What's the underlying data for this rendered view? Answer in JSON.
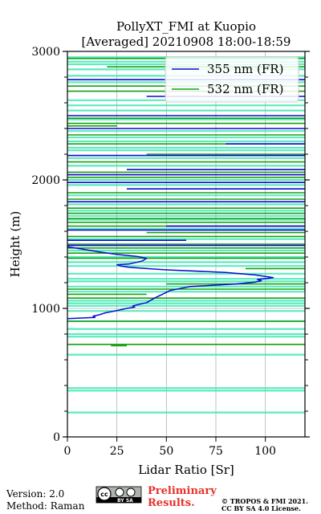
{
  "chart_data": {
    "type": "line",
    "title": "PollyXT_FMI at Kuopio",
    "subtitle": "[Averaged] 20210908 18:00-18:59",
    "xlabel": "Lidar Ratio [Sr]",
    "ylabel": "Height (m)",
    "xlim": [
      0,
      120
    ],
    "ylim": [
      0,
      3000
    ],
    "x_ticks": [
      "0",
      "25",
      "50",
      "75",
      "100"
    ],
    "y_ticks": [
      "0",
      "1000",
      "2000",
      "3000"
    ],
    "grid": true,
    "legend_position": "top-right",
    "colors": {
      "c355": "#0a0ad2",
      "c532": "#14a014",
      "band": "#3de8b4"
    },
    "series": [
      {
        "name": "355 nm (FR)",
        "color": "#0a0ad2",
        "x": [
          0,
          14,
          13,
          16,
          19,
          24,
          27,
          30,
          34,
          33,
          40,
          44,
          48,
          52,
          62,
          85,
          95,
          98,
          96,
          102,
          104,
          95,
          80,
          50,
          40,
          31,
          27,
          25,
          31,
          34,
          38,
          40,
          35,
          25,
          16,
          12,
          8,
          4,
          0
        ],
        "y": [
          920,
          930,
          940,
          950,
          965,
          980,
          990,
          1000,
          1010,
          1020,
          1045,
          1080,
          1110,
          1140,
          1170,
          1190,
          1205,
          1215,
          1225,
          1235,
          1240,
          1260,
          1280,
          1300,
          1310,
          1320,
          1330,
          1340,
          1345,
          1355,
          1370,
          1390,
          1405,
          1420,
          1440,
          1450,
          1460,
          1470,
          1480
        ]
      },
      {
        "name": "532 nm (FR)",
        "color": "#14a014",
        "x": [],
        "y": []
      }
    ],
    "segments_355": [
      {
        "y": 2780,
        "x0": 0,
        "x1": 120
      },
      {
        "y": 2650,
        "x0": 40,
        "x1": 120
      },
      {
        "y": 2500,
        "x0": 0,
        "x1": 120
      },
      {
        "y": 2400,
        "x0": 0,
        "x1": 120
      },
      {
        "y": 2280,
        "x0": 80,
        "x1": 120
      },
      {
        "y": 2190,
        "x0": 0,
        "x1": 120
      },
      {
        "y": 2080,
        "x0": 30,
        "x1": 120
      },
      {
        "y": 2040,
        "x0": 0,
        "x1": 120
      },
      {
        "y": 1980,
        "x0": 0,
        "x1": 120
      },
      {
        "y": 1930,
        "x0": 30,
        "x1": 120
      },
      {
        "y": 1830,
        "x0": 0,
        "x1": 120
      },
      {
        "y": 1640,
        "x0": 50,
        "x1": 120
      },
      {
        "y": 1610,
        "x0": 0,
        "x1": 120
      },
      {
        "y": 1530,
        "x0": 0,
        "x1": 60
      },
      {
        "y": 1490,
        "x0": 0,
        "x1": 120
      }
    ],
    "segments_532": [
      {
        "y": 2945,
        "x0": 0,
        "x1": 120
      },
      {
        "y": 2880,
        "x0": 20,
        "x1": 120
      },
      {
        "y": 2730,
        "x0": 0,
        "x1": 120
      },
      {
        "y": 2690,
        "x0": 0,
        "x1": 120
      },
      {
        "y": 2480,
        "x0": 0,
        "x1": 120
      },
      {
        "y": 2440,
        "x0": 0,
        "x1": 120
      },
      {
        "y": 2420,
        "x0": 0,
        "x1": 25
      },
      {
        "y": 2350,
        "x0": 0,
        "x1": 120
      },
      {
        "y": 2280,
        "x0": 0,
        "x1": 120
      },
      {
        "y": 2200,
        "x0": 40,
        "x1": 120
      },
      {
        "y": 2140,
        "x0": 0,
        "x1": 120
      },
      {
        "y": 2060,
        "x0": 0,
        "x1": 120
      },
      {
        "y": 2020,
        "x0": 0,
        "x1": 120
      },
      {
        "y": 1900,
        "x0": 0,
        "x1": 120
      },
      {
        "y": 1850,
        "x0": 0,
        "x1": 120
      },
      {
        "y": 1780,
        "x0": 0,
        "x1": 120
      },
      {
        "y": 1740,
        "x0": 0,
        "x1": 120
      },
      {
        "y": 1700,
        "x0": 0,
        "x1": 120
      },
      {
        "y": 1670,
        "x0": 0,
        "x1": 120
      },
      {
        "y": 1640,
        "x0": 0,
        "x1": 120
      },
      {
        "y": 1590,
        "x0": 40,
        "x1": 120
      },
      {
        "y": 1560,
        "x0": 0,
        "x1": 120
      },
      {
        "y": 1500,
        "x0": 0,
        "x1": 120
      },
      {
        "y": 1470,
        "x0": 0,
        "x1": 120
      },
      {
        "y": 1430,
        "x0": 0,
        "x1": 120
      },
      {
        "y": 1390,
        "x0": 0,
        "x1": 120
      },
      {
        "y": 1310,
        "x0": 90,
        "x1": 120
      },
      {
        "y": 1190,
        "x0": 50,
        "x1": 120
      },
      {
        "y": 1150,
        "x0": 0,
        "x1": 120
      },
      {
        "y": 1110,
        "x0": 0,
        "x1": 40
      },
      {
        "y": 1080,
        "x0": 0,
        "x1": 120
      },
      {
        "y": 900,
        "x0": 0,
        "x1": 120
      },
      {
        "y": 720,
        "x0": 0,
        "x1": 120
      },
      {
        "y": 710,
        "x0": 22,
        "x1": 30
      }
    ],
    "bands": [
      2955,
      2920,
      2900,
      2860,
      2810,
      2760,
      2620,
      2580,
      2540,
      2470,
      2380,
      2330,
      2300,
      2250,
      2230,
      2170,
      2110,
      2000,
      1960,
      1880,
      1810,
      1760,
      1720,
      1690,
      1620,
      1540,
      1450,
      1400,
      1360,
      1330,
      1270,
      1230,
      1210,
      1170,
      1130,
      1060,
      1040,
      1020,
      980,
      900,
      840,
      800,
      780,
      640,
      380,
      360,
      190
    ]
  },
  "footer": {
    "version": "Version: 2.0",
    "method": "Method: Raman",
    "preliminary_line1": "Preliminary",
    "preliminary_line2": "Results.",
    "preliminary_color": "#e8312a",
    "copyright_line1": "© TROPOS & FMI 2021.",
    "copyright_line2": "CC BY SA 4.0 License.",
    "cc_badge": "BY SA",
    "cc_logo": "cc-by-sa-icon"
  }
}
